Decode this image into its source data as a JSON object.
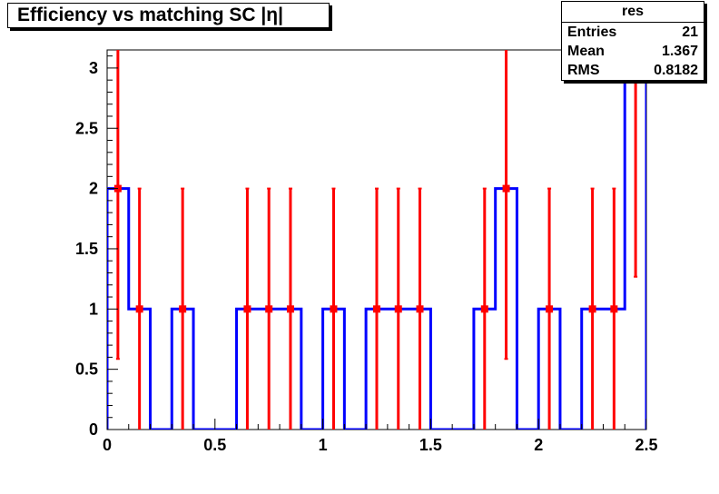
{
  "chart_data": {
    "type": "histogram",
    "title": "Efficiency vs matching SC |η|",
    "xlim": [
      0,
      2.5
    ],
    "ylim": [
      0,
      3.15
    ],
    "bin_width": 0.1,
    "x_ticks": [
      "0",
      "0.5",
      "1",
      "1.5",
      "2",
      "2.5"
    ],
    "y_ticks": [
      "0",
      "0.5",
      "1",
      "1.5",
      "2",
      "2.5",
      "3"
    ],
    "bins": [
      0.05,
      0.15,
      0.25,
      0.35,
      0.45,
      0.55,
      0.65,
      0.75,
      0.85,
      0.95,
      1.05,
      1.15,
      1.25,
      1.35,
      1.45,
      1.55,
      1.65,
      1.75,
      1.85,
      1.95,
      2.05,
      2.15,
      2.25,
      2.35,
      2.45
    ],
    "values": [
      2,
      1,
      0,
      1,
      0,
      0,
      1,
      1,
      1,
      0,
      1,
      0,
      1,
      1,
      1,
      0,
      0,
      1,
      2,
      0,
      1,
      0,
      1,
      1,
      3
    ],
    "points": [
      {
        "x": 0.05,
        "y": 2,
        "err": 1.414
      },
      {
        "x": 0.15,
        "y": 1,
        "err": 1
      },
      {
        "x": 0.35,
        "y": 1,
        "err": 1
      },
      {
        "x": 0.65,
        "y": 1,
        "err": 1
      },
      {
        "x": 0.75,
        "y": 1,
        "err": 1
      },
      {
        "x": 0.85,
        "y": 1,
        "err": 1
      },
      {
        "x": 1.05,
        "y": 1,
        "err": 1
      },
      {
        "x": 1.25,
        "y": 1,
        "err": 1
      },
      {
        "x": 1.35,
        "y": 1,
        "err": 1
      },
      {
        "x": 1.45,
        "y": 1,
        "err": 1
      },
      {
        "x": 1.75,
        "y": 1,
        "err": 1
      },
      {
        "x": 1.85,
        "y": 2,
        "err": 1.414
      },
      {
        "x": 2.05,
        "y": 1,
        "err": 1
      },
      {
        "x": 2.25,
        "y": 1,
        "err": 1
      },
      {
        "x": 2.35,
        "y": 1,
        "err": 1
      },
      {
        "x": 2.45,
        "y": 3,
        "err": 1.732
      }
    ],
    "line_color": "#0000ff",
    "marker_color": "#ff0000",
    "stats": {
      "name": "res",
      "rows": [
        {
          "label": "Entries",
          "value": "21"
        },
        {
          "label": "Mean",
          "value": "1.367"
        },
        {
          "label": "RMS",
          "value": "0.8182"
        }
      ]
    }
  }
}
